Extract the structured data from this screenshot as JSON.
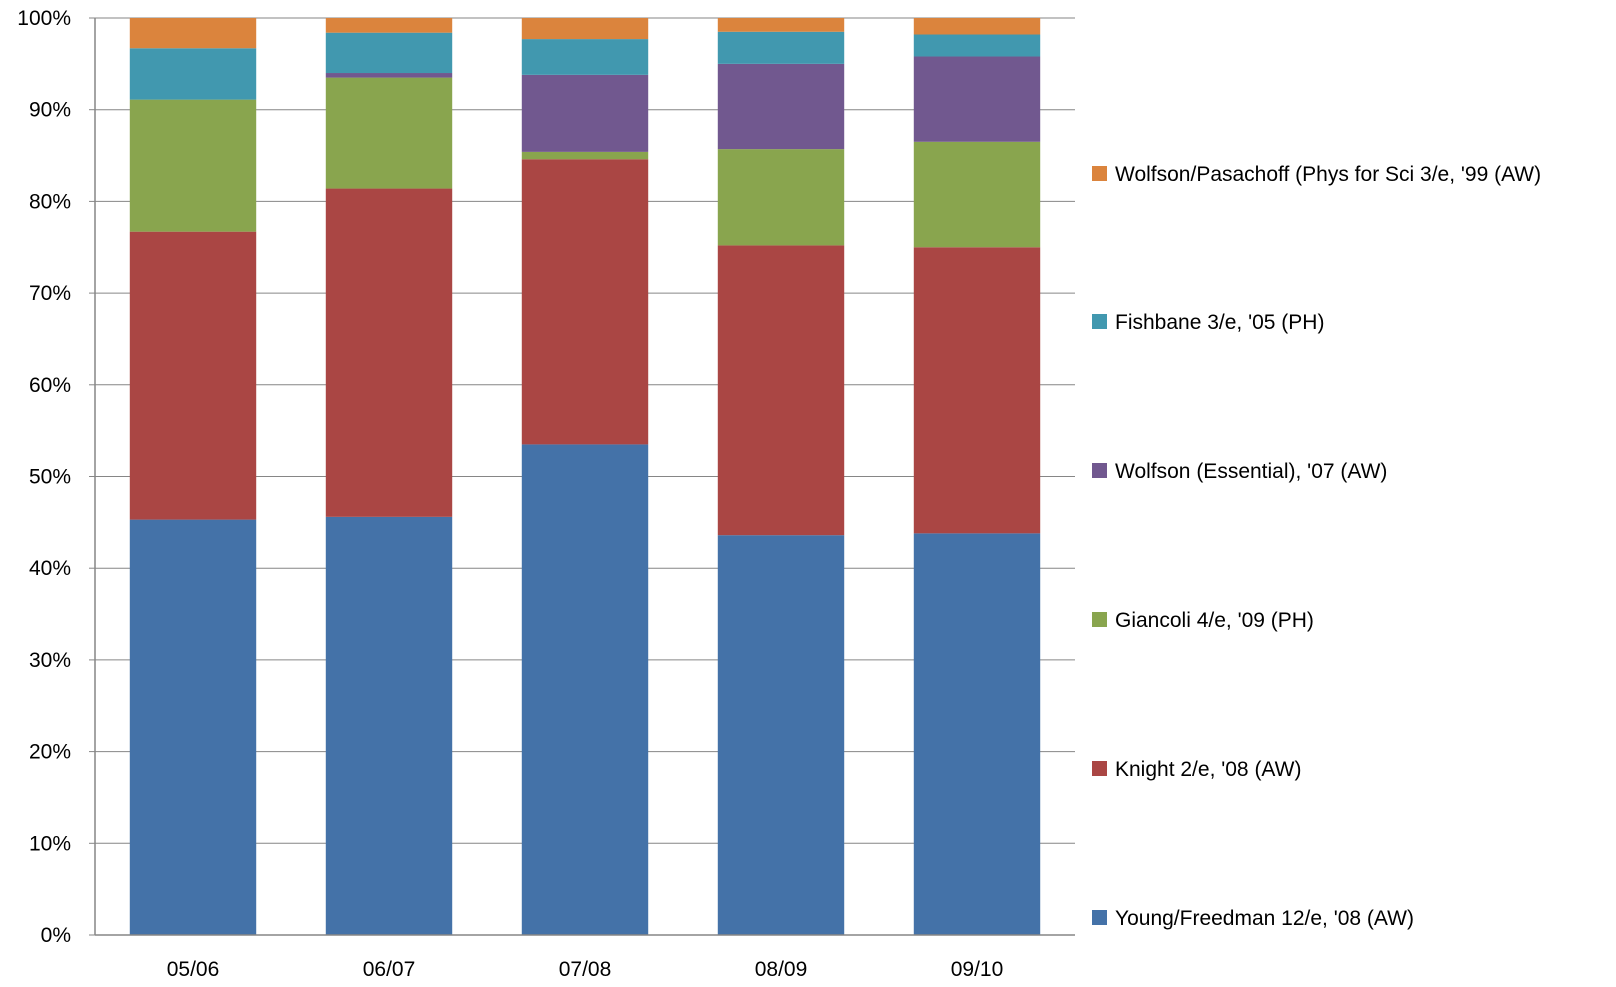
{
  "chart_data": {
    "type": "bar",
    "stacked": true,
    "normalized_percent": true,
    "categories": [
      "05/06",
      "06/07",
      "07/08",
      "08/09",
      "09/10"
    ],
    "y_ticks": [
      "0%",
      "10%",
      "20%",
      "30%",
      "40%",
      "50%",
      "60%",
      "70%",
      "80%",
      "90%",
      "100%"
    ],
    "ylim": [
      0,
      100
    ],
    "grid": true,
    "legend_position": "right",
    "series": [
      {
        "name": "Young/Freedman 12/e, '08 (AW)",
        "color": "#4472A8",
        "values": [
          45.3,
          45.6,
          53.5,
          43.6,
          43.8
        ]
      },
      {
        "name": "Knight 2/e, '08 (AW)",
        "color": "#AA4644",
        "values": [
          31.4,
          35.8,
          31.1,
          31.6,
          31.2
        ]
      },
      {
        "name": "Giancoli 4/e, '09 (PH)",
        "color": "#89A54E",
        "values": [
          14.4,
          12.1,
          0.8,
          10.5,
          11.5
        ]
      },
      {
        "name": "Wolfson (Essential), '07 (AW)",
        "color": "#71588F",
        "values": [
          0.0,
          0.5,
          8.4,
          9.3,
          9.3
        ]
      },
      {
        "name": "Fishbane 3/e, '05 (PH)",
        "color": "#4198AF",
        "values": [
          5.6,
          4.4,
          3.9,
          3.5,
          2.4
        ]
      },
      {
        "name": "Wolfson/Pasachoff (Phys for Sci 3/e, '99 (AW)",
        "color": "#DB843D",
        "values": [
          3.3,
          1.6,
          2.3,
          1.5,
          1.8
        ]
      }
    ]
  }
}
